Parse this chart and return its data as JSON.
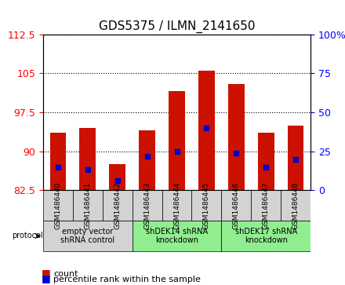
{
  "title": "GDS5375 / ILMN_2141650",
  "samples": [
    "GSM1486440",
    "GSM1486441",
    "GSM1486442",
    "GSM1486443",
    "GSM1486444",
    "GSM1486445",
    "GSM1486446",
    "GSM1486447",
    "GSM1486448"
  ],
  "counts": [
    93.5,
    94.5,
    87.5,
    94.0,
    101.5,
    105.5,
    103.0,
    93.5,
    95.0
  ],
  "percentile_ranks": [
    15,
    13,
    6,
    22,
    25,
    40,
    24,
    15,
    20
  ],
  "ylim_left": [
    82.5,
    112.5
  ],
  "yticks_left": [
    82.5,
    90,
    97.5,
    105,
    112.5
  ],
  "ylim_right": [
    0,
    100
  ],
  "yticks_right": [
    0,
    25,
    50,
    75,
    100
  ],
  "bar_color": "#cc1100",
  "dot_color": "#0000cc",
  "bar_bottom": 82.5,
  "groups": [
    {
      "label": "empty vector\nshRNA control",
      "start": 0,
      "end": 3,
      "color": "#90ee90"
    },
    {
      "label": "shDEK14 shRNA\nknockdown",
      "start": 3,
      "end": 6,
      "color": "#90ee90"
    },
    {
      "label": "shDEK17 shRNA\nknockdown",
      "start": 6,
      "end": 9,
      "color": "#90ee90"
    }
  ],
  "group_bg_color": "#d3d3d3",
  "protocol_label": "protocol",
  "legend_count_color": "#cc1100",
  "legend_pct_color": "#0000cc"
}
